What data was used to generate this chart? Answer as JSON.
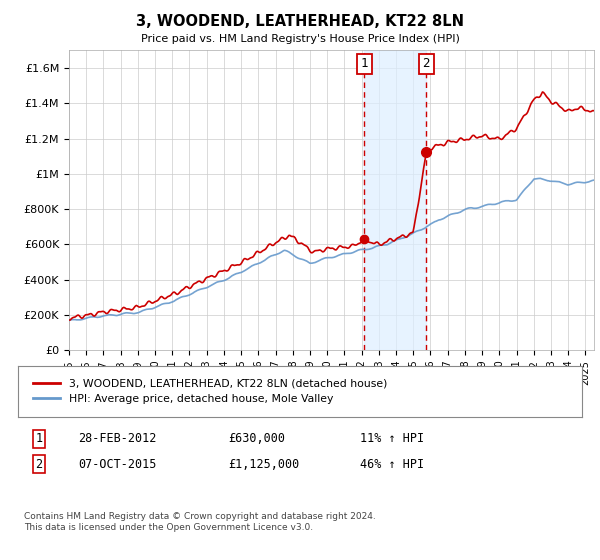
{
  "title": "3, WOODEND, LEATHERHEAD, KT22 8LN",
  "subtitle": "Price paid vs. HM Land Registry's House Price Index (HPI)",
  "ylabel_ticks": [
    "£0",
    "£200K",
    "£400K",
    "£600K",
    "£800K",
    "£1M",
    "£1.2M",
    "£1.4M",
    "£1.6M"
  ],
  "ytick_vals": [
    0,
    200000,
    400000,
    600000,
    800000,
    1000000,
    1200000,
    1400000,
    1600000
  ],
  "ylim": [
    0,
    1700000
  ],
  "xlim_start": 1995.0,
  "xlim_end": 2025.5,
  "sale1_date": 2012.16,
  "sale1_price": 630000,
  "sale2_date": 2015.76,
  "sale2_price": 1125000,
  "legend_line1": "3, WOODEND, LEATHERHEAD, KT22 8LN (detached house)",
  "legend_line2": "HPI: Average price, detached house, Mole Valley",
  "table_row1": [
    "1",
    "28-FEB-2012",
    "£630,000",
    "11% ↑ HPI"
  ],
  "table_row2": [
    "2",
    "07-OCT-2015",
    "£1,125,000",
    "46% ↑ HPI"
  ],
  "footer": "Contains HM Land Registry data © Crown copyright and database right 2024.\nThis data is licensed under the Open Government Licence v3.0.",
  "hpi_color": "#6699cc",
  "price_color": "#cc0000",
  "shade_color": "#ddeeff",
  "dashed_color": "#cc0000",
  "grid_color": "#cccccc",
  "spine_color": "#aaaaaa"
}
